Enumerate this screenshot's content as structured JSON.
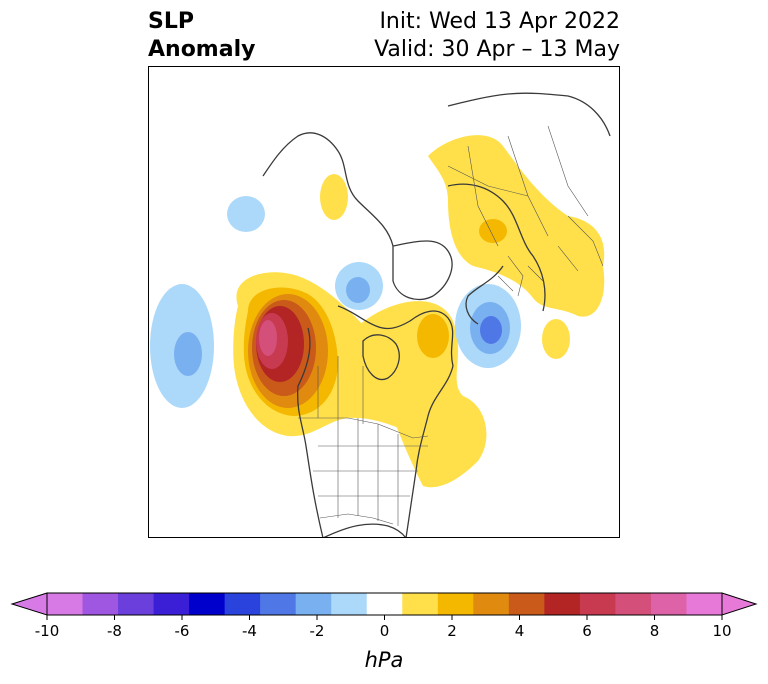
{
  "title": {
    "left_line1": "SLP",
    "left_line2": "Anomaly",
    "init": "Init: Wed 13 Apr 2022",
    "valid": "Valid: 30 Apr – 13 May"
  },
  "colorbar": {
    "label": "hPa",
    "range": [
      -10,
      10
    ],
    "ticks": [
      "-10",
      "-8",
      "-6",
      "-4",
      "-2",
      "0",
      "2",
      "4",
      "6",
      "8",
      "10"
    ],
    "colors": [
      "#d77ae6",
      "#9f56e0",
      "#6a3fdb",
      "#3a1fd6",
      "#0000cc",
      "#2a43dc",
      "#4f78e6",
      "#79b0f0",
      "#acd9fa",
      "#ffffff",
      "#ffe04a",
      "#f5b800",
      "#e08a10",
      "#c95a1a",
      "#b32424",
      "#c83a50",
      "#d4507a",
      "#de62a8",
      "#e77ad8"
    ]
  },
  "anomalies": [
    {
      "name": "pacific-high",
      "color_index": 16
    },
    {
      "name": "pacific-low",
      "color_index": 7
    }
  ]
}
